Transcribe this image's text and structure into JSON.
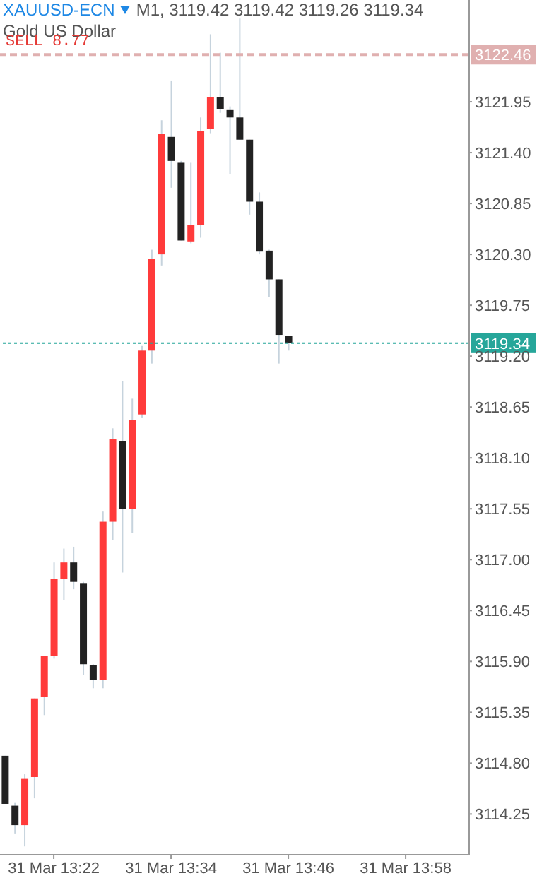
{
  "chart_data": {
    "type": "candlestick",
    "title": "XAUUSD-ECN",
    "subtitle": "Gold US Dollar",
    "annotations": [
      "M1, 3119.42 3119.42 3119.26 3119.34",
      {
        "text": "SELL 8.77",
        "y": 3122.46
      }
    ],
    "categories": [
      null,
      null,
      null,
      null,
      null,
      "31 Mar 13:22",
      null,
      null,
      null,
      null,
      null,
      null,
      null,
      null,
      null,
      null,
      null,
      "31 Mar 13:34",
      null,
      null,
      null,
      null,
      null,
      null,
      null,
      null,
      null,
      null,
      null,
      "31 Mar 13:46",
      null,
      null,
      null,
      null,
      null,
      null,
      null,
      null,
      null,
      null,
      null,
      "31 Mar 13:58",
      null,
      null,
      null,
      null,
      null,
      null
    ],
    "ohlc": [
      [
        3114.88,
        3114.88,
        3114.36,
        3114.36
      ],
      [
        3114.34,
        3114.37,
        3114.04,
        3114.13
      ],
      [
        3114.13,
        3114.68,
        3113.9,
        3114.63
      ],
      [
        3114.65,
        3115.5,
        3114.42,
        3115.5
      ],
      [
        3115.52,
        3115.96,
        3115.32,
        3115.96
      ],
      [
        3115.96,
        3116.97,
        3115.93,
        3116.79
      ],
      [
        3116.79,
        3117.12,
        3116.56,
        3116.97
      ],
      [
        3116.97,
        3117.14,
        3116.68,
        3116.76
      ],
      [
        3116.74,
        3116.76,
        3115.75,
        3115.87
      ],
      [
        3115.86,
        3115.87,
        3115.61,
        3115.7
      ],
      [
        3115.7,
        3117.52,
        3115.61,
        3117.41
      ],
      [
        3117.41,
        3118.42,
        3117.21,
        3118.3
      ],
      [
        3118.28,
        3118.93,
        3116.86,
        3117.55
      ],
      [
        3117.55,
        3118.74,
        3117.29,
        3118.51
      ],
      [
        3118.57,
        3119.31,
        3118.53,
        3119.26
      ],
      [
        3119.26,
        3120.35,
        3119.12,
        3120.25
      ],
      [
        3120.3,
        3121.75,
        3120.18,
        3121.6
      ],
      [
        3121.57,
        3122.18,
        3121.02,
        3121.31
      ],
      [
        3121.29,
        3121.31,
        3120.45,
        3120.45
      ],
      [
        3120.44,
        3121.29,
        3120.42,
        3120.62
      ],
      [
        3120.62,
        3121.78,
        3120.48,
        3121.63
      ],
      [
        3121.66,
        3122.68,
        3121.61,
        3122.0
      ],
      [
        3122.0,
        3122.48,
        3121.83,
        3121.87
      ],
      [
        3121.86,
        3121.9,
        3121.17,
        3121.78
      ],
      [
        3121.78,
        3122.85,
        3121.54,
        3121.54
      ],
      [
        3121.54,
        3121.54,
        3120.73,
        3120.87
      ],
      [
        3120.87,
        3120.97,
        3120.3,
        3120.33
      ],
      [
        3120.34,
        3120.35,
        3119.84,
        3120.03
      ],
      [
        3120.03,
        3120.03,
        3119.12,
        3119.43
      ],
      [
        3119.42,
        3119.42,
        3119.26,
        3119.34
      ],
      null,
      null,
      null,
      null,
      null,
      null,
      null,
      null,
      null,
      null,
      null,
      null,
      null,
      null,
      null,
      null,
      null,
      null
    ],
    "colors": [
      "#222222",
      "#222222",
      "#ff3b3b",
      "#ff3b3b",
      "#ff3b3b",
      "#ff3b3b",
      "#ff3b3b",
      "#222222",
      "#222222",
      "#222222",
      "#ff3b3b",
      "#ff3b3b",
      "#222222",
      "#ff3b3b",
      "#ff3b3b",
      "#ff3b3b",
      "#ff3b3b",
      "#222222",
      "#222222",
      "#ff3b3b",
      "#ff3b3b",
      "#ff3b3b",
      "#222222",
      "#222222",
      "#222222",
      "#222222",
      "#222222",
      "#222222",
      "#222222",
      "#222222",
      null,
      null,
      null,
      null,
      null,
      null,
      null,
      null,
      null,
      null,
      null,
      null,
      null,
      null,
      null,
      null,
      null,
      null
    ],
    "ylim": [
      3113.81,
      3123.05
    ],
    "yticks": [
      3114.25,
      {
        "value": 3114.8,
        "label": "3114.80"
      },
      3115.35,
      {
        "value": 3115.9,
        "label": "3115.90"
      },
      3116.45,
      {
        "value": 3117,
        "label": "3117.00"
      },
      3117.55,
      {
        "value": 3118.1,
        "label": "3118.10"
      },
      3118.65,
      {
        "value": 3119.2,
        "label": "3119.20"
      },
      3119.75,
      {
        "value": 3120.3,
        "label": "3120.30"
      },
      3120.85,
      {
        "value": 3121.4,
        "label": "3121.40"
      },
      3121.95
    ],
    "ref_lines": [
      {
        "axis": "y",
        "value": 3122.46,
        "label": "3122.46",
        "color": "#e0b0b0",
        "line_style": "dashed"
      },
      {
        "axis": "y",
        "value": 3119.34,
        "label": "3119.34",
        "color": "#26a69a",
        "line_style": "dotted"
      }
    ]
  }
}
